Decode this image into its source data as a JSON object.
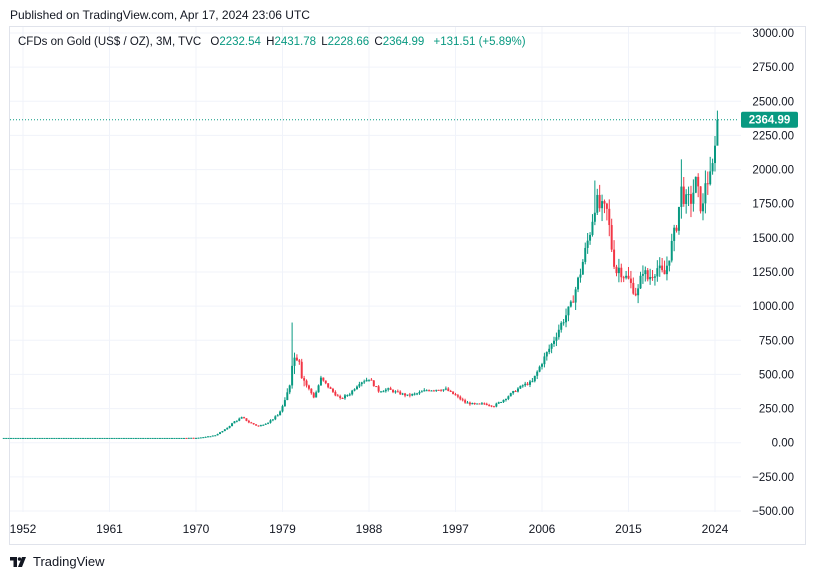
{
  "header": {
    "published": "Published on TradingView.com, Apr 17, 2024 23:06 UTC"
  },
  "legend": {
    "symbol": "CFDs on Gold (US$ / OZ), 3M, TVC",
    "open_label": "O",
    "open": "2232.54",
    "high_label": "H",
    "high": "2431.78",
    "low_label": "L",
    "low": "2228.66",
    "close_label": "C",
    "close": "2364.99",
    "change": "+131.51 (+5.89%)"
  },
  "footer": {
    "brand": "TradingView",
    "logo_icon": "tradingview-logo-icon"
  },
  "colors": {
    "up": "#089981",
    "down": "#f23645",
    "grid": "#f0f3fa",
    "text": "#131722",
    "price_line": "#089981"
  },
  "chart_data": {
    "type": "candlestick",
    "interval": "3M",
    "xlim": [
      1950.0,
      2026.5
    ],
    "ylim": [
      -500,
      3000
    ],
    "x_ticks": [
      "1952",
      "1961",
      "1970",
      "1979",
      "1988",
      "1997",
      "2006",
      "2015",
      "2024"
    ],
    "y_ticks": [
      "3000.00",
      "2750.00",
      "2500.00",
      "2250.00",
      "2000.00",
      "1750.00",
      "1500.00",
      "1250.00",
      "1000.00",
      "750.00",
      "500.00",
      "250.00",
      "0.00",
      "−250.00",
      "−500.00"
    ],
    "last_price": "2364.99",
    "last_price_value": 2364.99,
    "grid": true,
    "anchors": [
      [
        1950.0,
        35
      ],
      [
        1969.5,
        35
      ],
      [
        1970.0,
        36
      ],
      [
        1971.0,
        42
      ],
      [
        1972.0,
        55
      ],
      [
        1973.0,
        95
      ],
      [
        1974.0,
        155
      ],
      [
        1974.8,
        185
      ],
      [
        1975.5,
        150
      ],
      [
        1976.5,
        120
      ],
      [
        1977.5,
        150
      ],
      [
        1978.5,
        200
      ],
      [
        1979.3,
        300
      ],
      [
        1979.8,
        450
      ],
      [
        1980.0,
        600
      ],
      [
        1980.5,
        640
      ],
      [
        1980.8,
        620
      ],
      [
        1981.0,
        500
      ],
      [
        1981.5,
        420
      ],
      [
        1982.3,
        330
      ],
      [
        1983.0,
        470
      ],
      [
        1984.0,
        390
      ],
      [
        1985.0,
        320
      ],
      [
        1986.0,
        360
      ],
      [
        1987.0,
        440
      ],
      [
        1988.0,
        470
      ],
      [
        1989.0,
        380
      ],
      [
        1990.0,
        390
      ],
      [
        1991.0,
        365
      ],
      [
        1992.0,
        345
      ],
      [
        1993.0,
        360
      ],
      [
        1994.0,
        385
      ],
      [
        1995.0,
        390
      ],
      [
        1996.0,
        390
      ],
      [
        1997.0,
        345
      ],
      [
        1998.0,
        295
      ],
      [
        1999.0,
        280
      ],
      [
        2000.0,
        285
      ],
      [
        2001.0,
        270
      ],
      [
        2002.0,
        315
      ],
      [
        2003.0,
        370
      ],
      [
        2004.0,
        420
      ],
      [
        2005.0,
        445
      ],
      [
        2006.0,
        590
      ],
      [
        2007.0,
        720
      ],
      [
        2008.0,
        870
      ],
      [
        2009.0,
        1000
      ],
      [
        2010.0,
        1250
      ],
      [
        2011.0,
        1550
      ],
      [
        2011.6,
        1780
      ],
      [
        2012.0,
        1720
      ],
      [
        2012.8,
        1690
      ],
      [
        2013.3,
        1400
      ],
      [
        2013.7,
        1250
      ],
      [
        2014.0,
        1280
      ],
      [
        2014.6,
        1220
      ],
      [
        2015.0,
        1190
      ],
      [
        2015.9,
        1080
      ],
      [
        2016.5,
        1270
      ],
      [
        2017.0,
        1200
      ],
      [
        2018.0,
        1280
      ],
      [
        2018.7,
        1220
      ],
      [
        2019.0,
        1300
      ],
      [
        2019.6,
        1480
      ],
      [
        2020.0,
        1600
      ],
      [
        2020.5,
        1850
      ],
      [
        2021.0,
        1760
      ],
      [
        2021.5,
        1780
      ],
      [
        2022.0,
        1900
      ],
      [
        2022.7,
        1680
      ],
      [
        2023.0,
        1920
      ],
      [
        2023.5,
        1930
      ],
      [
        2023.8,
        2030
      ],
      [
        2024.0,
        2230
      ],
      [
        2024.3,
        2365
      ]
    ]
  }
}
